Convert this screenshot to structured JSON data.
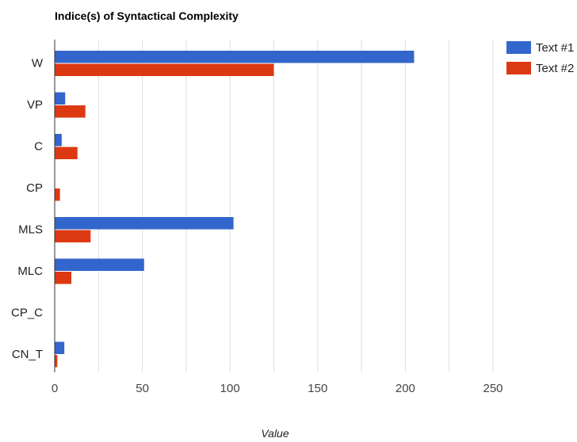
{
  "chart_data": {
    "type": "bar",
    "orientation": "horizontal",
    "title": "Indice(s) of Syntactical Complexity",
    "xlabel": "Value",
    "ylabel": "",
    "xlim": [
      0,
      260
    ],
    "xticks": [
      0,
      50,
      100,
      150,
      200,
      250
    ],
    "grid": true,
    "legend_position": "right",
    "categories": [
      "W",
      "VP",
      "C",
      "CP",
      "MLS",
      "MLC",
      "CP_C",
      "CN_T"
    ],
    "series": [
      {
        "name": "Text #1",
        "color": "#3366cc",
        "values": [
          205,
          6,
          4,
          0,
          102,
          51,
          0,
          5.5
        ]
      },
      {
        "name": "Text #2",
        "color": "#dc3912",
        "values": [
          125,
          17.5,
          13,
          3,
          20.5,
          9.5,
          0,
          1.5
        ]
      }
    ]
  }
}
